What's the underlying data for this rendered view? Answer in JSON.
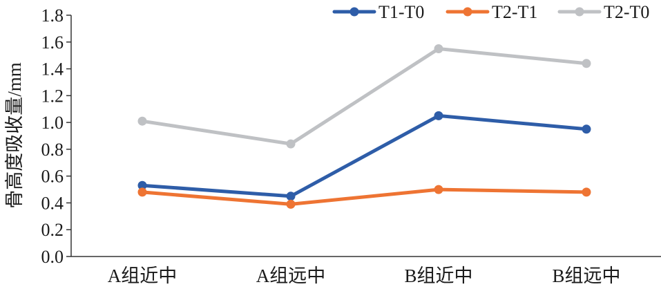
{
  "chart_data": {
    "type": "line",
    "categories": [
      "A组近中",
      "A组远中",
      "B组近中",
      "B组远中"
    ],
    "series": [
      {
        "name": "T1-T0",
        "values": [
          0.53,
          0.45,
          1.05,
          0.95
        ],
        "color": "#2e5da8"
      },
      {
        "name": "T2-T1",
        "values": [
          0.48,
          0.39,
          0.5,
          0.48
        ],
        "color": "#ee7433"
      },
      {
        "name": "T2-T0",
        "values": [
          1.01,
          0.84,
          1.55,
          1.44
        ],
        "color": "#bfc1c4"
      }
    ],
    "yticks": [
      "0.0",
      "0.2",
      "0.4",
      "0.6",
      "0.8",
      "1.0",
      "1.2",
      "1.4",
      "1.6",
      "1.8"
    ],
    "ylabel": "骨高度吸收量/mm",
    "xlabel": "",
    "ylim": [
      0,
      1.8
    ],
    "grid": false,
    "legend_position": "top-right"
  }
}
